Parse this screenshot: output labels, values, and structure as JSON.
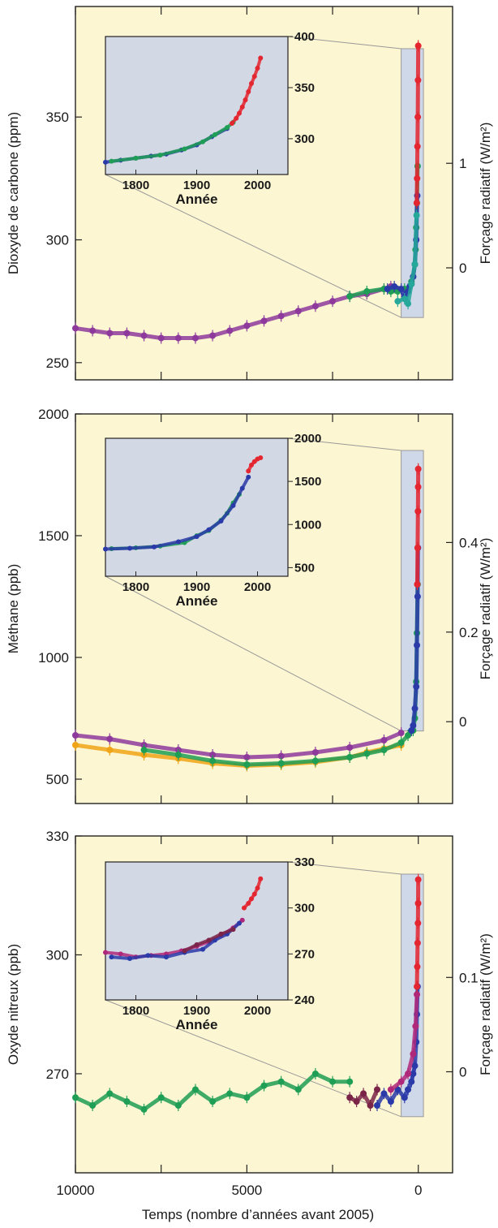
{
  "figure": {
    "xlabel": "Temps (nombre d’années avant 2005)",
    "xticks": [
      "10000",
      "5000",
      "0"
    ]
  },
  "colors": {
    "panel_bg": "#fdf6d2",
    "inset_bg": "#d3d8e5",
    "highlight_band": "#cfd8e8",
    "purple": "#8e3a9c",
    "green": "#1f9e55",
    "blue": "#2a3aa8",
    "red": "#e3262f",
    "teal": "#25a89a",
    "orange": "#f0a418",
    "maroon": "#7a2548",
    "magenta": "#b0287a"
  },
  "chart_data": [
    {
      "type": "scatter",
      "ylabel": "Dioxyde de carbone (ppm)",
      "y2label": "Forçage radiatif (W/m²)",
      "ylim": [
        243,
        395
      ],
      "yticks": [
        "250",
        "300",
        "350"
      ],
      "y2ticks": [
        "0",
        "1"
      ],
      "xlim": [
        10000,
        -1000
      ],
      "series": [
        {
          "color": "purple",
          "x": [
            10000,
            9500,
            9000,
            8500,
            8000,
            7500,
            7000,
            6500,
            6000,
            5500,
            5000,
            4500,
            4000,
            3500,
            3000,
            2500,
            2000,
            1500,
            1000,
            800
          ],
          "y": [
            264,
            263,
            262,
            262,
            261,
            260,
            260,
            260,
            261,
            263,
            265,
            267,
            269,
            271,
            273,
            275,
            277,
            278,
            280,
            281
          ]
        },
        {
          "color": "green",
          "x": [
            2000,
            1500,
            1000,
            800,
            600,
            400,
            300,
            200,
            150,
            100,
            80,
            60,
            40,
            20
          ],
          "y": [
            277,
            279,
            280,
            279,
            279,
            280,
            280,
            283,
            285,
            290,
            296,
            305,
            315,
            330
          ]
        },
        {
          "color": "blue",
          "x": [
            900,
            700,
            500,
            400,
            300,
            250,
            200,
            150,
            100,
            60,
            30
          ],
          "y": [
            280,
            281,
            280,
            277,
            279,
            281,
            282,
            285,
            290,
            300,
            318
          ]
        },
        {
          "color": "teal",
          "x": [
            600,
            400,
            300,
            200,
            100,
            50
          ],
          "y": [
            275,
            276,
            274,
            282,
            290,
            310
          ]
        },
        {
          "color": "red",
          "x": [
            45,
            35,
            25,
            15,
            8,
            2
          ],
          "y": [
            315,
            325,
            338,
            350,
            365,
            379
          ]
        }
      ],
      "inset": {
        "xlabel": "Année",
        "xticks": [
          "1800",
          "1900",
          "2000"
        ],
        "yticks": [
          "300",
          "350",
          "400"
        ],
        "xlim": [
          1750,
          2050
        ],
        "ylim": [
          265,
          400
        ],
        "series": [
          {
            "color": "blue",
            "x": [
              1750,
              1775,
              1800,
              1825,
              1850,
              1875,
              1900,
              1925,
              1950
            ],
            "y": [
              277,
              279,
              281,
              283,
              285,
              289,
              294,
              302,
              310
            ]
          },
          {
            "color": "green",
            "x": [
              1760,
              1800,
              1840,
              1880,
              1910,
              1930,
              1950,
              1960
            ],
            "y": [
              278,
              281,
              284,
              290,
              297,
              304,
              311,
              316
            ]
          },
          {
            "color": "red",
            "x": [
              1958,
              1965,
              1970,
              1975,
              1980,
              1985,
              1990,
              1995,
              2000,
              2005
            ],
            "y": [
              315,
              320,
              325,
              331,
              338,
              346,
              354,
              361,
              369,
              379
            ]
          }
        ]
      }
    },
    {
      "type": "scatter",
      "ylabel": "Méthane (ppb)",
      "y2label": "Forçage radiatif (W/m²)",
      "ylim": [
        400,
        2000
      ],
      "yticks": [
        "500",
        "1000",
        "1500",
        "2000"
      ],
      "y2ticks": [
        "0",
        "0.2",
        "0.4"
      ],
      "xlim": [
        10000,
        -1000
      ],
      "series": [
        {
          "color": "orange",
          "x": [
            10000,
            9000,
            8000,
            7000,
            6000,
            5000,
            4000,
            3000,
            2000,
            1500,
            1000,
            500
          ],
          "y": [
            640,
            620,
            600,
            585,
            565,
            555,
            560,
            570,
            590,
            610,
            625,
            640
          ]
        },
        {
          "color": "purple",
          "x": [
            10000,
            9000,
            8000,
            7000,
            6000,
            5000,
            4000,
            3000,
            2000,
            1000,
            500
          ],
          "y": [
            680,
            665,
            640,
            620,
            600,
            590,
            595,
            610,
            630,
            660,
            690
          ]
        },
        {
          "color": "green",
          "x": [
            8000,
            7000,
            6000,
            5000,
            4000,
            3000,
            2000,
            1500,
            1000,
            500,
            300,
            150,
            100,
            60,
            40,
            20
          ],
          "y": [
            620,
            600,
            575,
            560,
            565,
            575,
            590,
            605,
            620,
            650,
            680,
            700,
            750,
            900,
            1100,
            1300
          ]
        },
        {
          "color": "blue",
          "x": [
            200,
            150,
            100,
            60,
            40,
            20,
            10
          ],
          "y": [
            700,
            720,
            790,
            880,
            1050,
            1250,
            1450
          ]
        },
        {
          "color": "red",
          "x": [
            30,
            20,
            10,
            5,
            2
          ],
          "y": [
            1300,
            1450,
            1600,
            1700,
            1774
          ]
        }
      ],
      "inset": {
        "xlabel": "Année",
        "xticks": [
          "1800",
          "1900",
          "2000"
        ],
        "yticks": [
          "500",
          "1000",
          "1500",
          "2000"
        ],
        "xlim": [
          1750,
          2050
        ],
        "ylim": [
          400,
          2000
        ],
        "series": [
          {
            "color": "green",
            "x": [
              1760,
              1800,
              1840,
              1880,
              1900,
              1920,
              1940,
              1950,
              1960,
              1970
            ],
            "y": [
              720,
              730,
              750,
              790,
              870,
              930,
              1050,
              1130,
              1250,
              1350
            ]
          },
          {
            "color": "blue",
            "x": [
              1750,
              1790,
              1830,
              1870,
              1900,
              1920,
              1940,
              1960,
              1975,
              1985
            ],
            "y": [
              715,
              725,
              740,
              800,
              860,
              940,
              1040,
              1220,
              1420,
              1550
            ]
          },
          {
            "color": "red",
            "x": [
              1985,
              1990,
              1995,
              2000,
              2005
            ],
            "y": [
              1620,
              1690,
              1730,
              1760,
              1774
            ]
          }
        ]
      }
    },
    {
      "type": "scatter",
      "ylabel": "Oxyde nitreux (ppb)",
      "y2label": "Forçage radiatif (W/m²)",
      "ylim": [
        245,
        330
      ],
      "yticks": [
        "270",
        "300",
        "330"
      ],
      "y2ticks": [
        "0",
        "0.1"
      ],
      "xlim": [
        10000,
        -1000
      ],
      "series": [
        {
          "color": "green",
          "x": [
            10000,
            9500,
            9000,
            8500,
            8000,
            7500,
            7000,
            6500,
            6000,
            5500,
            5000,
            4500,
            4000,
            3500,
            3000,
            2500,
            2000
          ],
          "y": [
            264,
            262,
            265,
            263,
            261,
            264,
            262,
            266,
            263,
            265,
            264,
            267,
            268,
            266,
            270,
            268,
            268
          ]
        },
        {
          "color": "maroon",
          "x": [
            2000,
            1800,
            1600,
            1400,
            1200
          ],
          "y": [
            264,
            263,
            265,
            262,
            266
          ]
        },
        {
          "color": "blue",
          "x": [
            1200,
            1000,
            800,
            600,
            400,
            300,
            200,
            150,
            100,
            60,
            40,
            20
          ],
          "y": [
            262,
            265,
            263,
            266,
            264,
            266,
            268,
            270,
            272,
            278,
            285,
            292
          ]
        },
        {
          "color": "magenta",
          "x": [
            800,
            500,
            300,
            150,
            80,
            40
          ],
          "y": [
            266,
            268,
            270,
            275,
            282,
            290
          ]
        },
        {
          "color": "red",
          "x": [
            40,
            30,
            20,
            10,
            5,
            2
          ],
          "y": [
            292,
            297,
            303,
            308,
            313,
            319
          ]
        }
      ],
      "inset": {
        "xlabel": "Année",
        "xticks": [
          "1800",
          "1900",
          "2000"
        ],
        "yticks": [
          "240",
          "270",
          "300",
          "330"
        ],
        "xlim": [
          1750,
          2050
        ],
        "ylim": [
          240,
          330
        ],
        "series": [
          {
            "color": "magenta",
            "x": [
              1750,
              1775,
              1800,
              1825,
              1850,
              1875,
              1900,
              1920,
              1940,
              1960,
              1975
            ],
            "y": [
              271,
              270,
              268,
              269,
              270,
              272,
              275,
              278,
              282,
              287,
              292
            ]
          },
          {
            "color": "blue",
            "x": [
              1760,
              1790,
              1820,
              1850,
              1880,
              1910,
              1930,
              1950,
              1970
            ],
            "y": [
              268,
              267,
              269,
              268,
              271,
              273,
              279,
              283,
              290
            ]
          },
          {
            "color": "maroon",
            "x": [
              1880,
              1900,
              1920,
              1940,
              1960
            ],
            "y": [
              272,
              276,
              279,
              283,
              286
            ]
          },
          {
            "color": "red",
            "x": [
              1978,
              1985,
              1990,
              1995,
              2000,
              2005
            ],
            "y": [
              300,
              303,
              306,
              309,
              313,
              319
            ]
          }
        ]
      }
    }
  ]
}
